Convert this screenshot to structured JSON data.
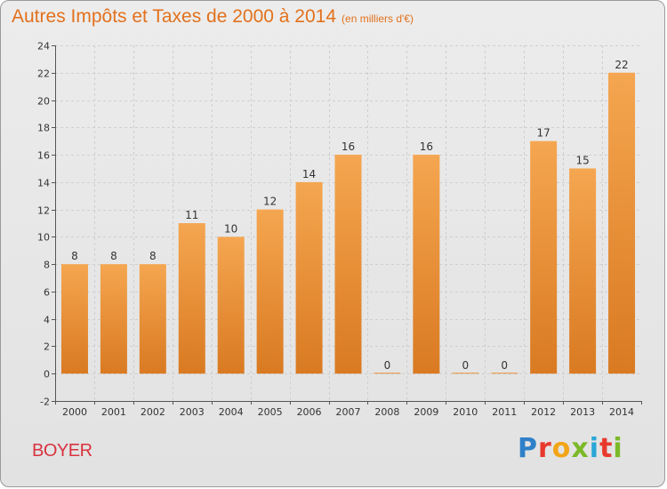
{
  "header": {
    "title": "Autres Impôts et Taxes de 2000 à 2014",
    "unit": "(en milliers d'€)"
  },
  "commune": "BOYER",
  "logo": {
    "letters": [
      "P",
      "r",
      "o",
      "x",
      "i",
      "t",
      "i"
    ]
  },
  "colors": {
    "title": "#e2711d",
    "commune": "#d9323f",
    "bar_light": "#f5a650",
    "bar_dark": "#d97a22"
  },
  "chart_data": {
    "type": "bar",
    "title": "Autres Impôts et Taxes de 2000 à 2014",
    "subtitle": "(en milliers d'€)",
    "xlabel": "",
    "ylabel": "",
    "categories": [
      "2000",
      "2001",
      "2002",
      "2003",
      "2004",
      "2005",
      "2006",
      "2007",
      "2008",
      "2009",
      "2010",
      "2011",
      "2012",
      "2013",
      "2014"
    ],
    "values": [
      8,
      8,
      8,
      11,
      10,
      12,
      14,
      16,
      0,
      16,
      0,
      0,
      17,
      15,
      22
    ],
    "ylim": [
      -2,
      24
    ],
    "yticks": [
      -2,
      0,
      2,
      4,
      6,
      8,
      10,
      12,
      14,
      16,
      18,
      20,
      22,
      24
    ],
    "grid": true,
    "legend": "none"
  }
}
